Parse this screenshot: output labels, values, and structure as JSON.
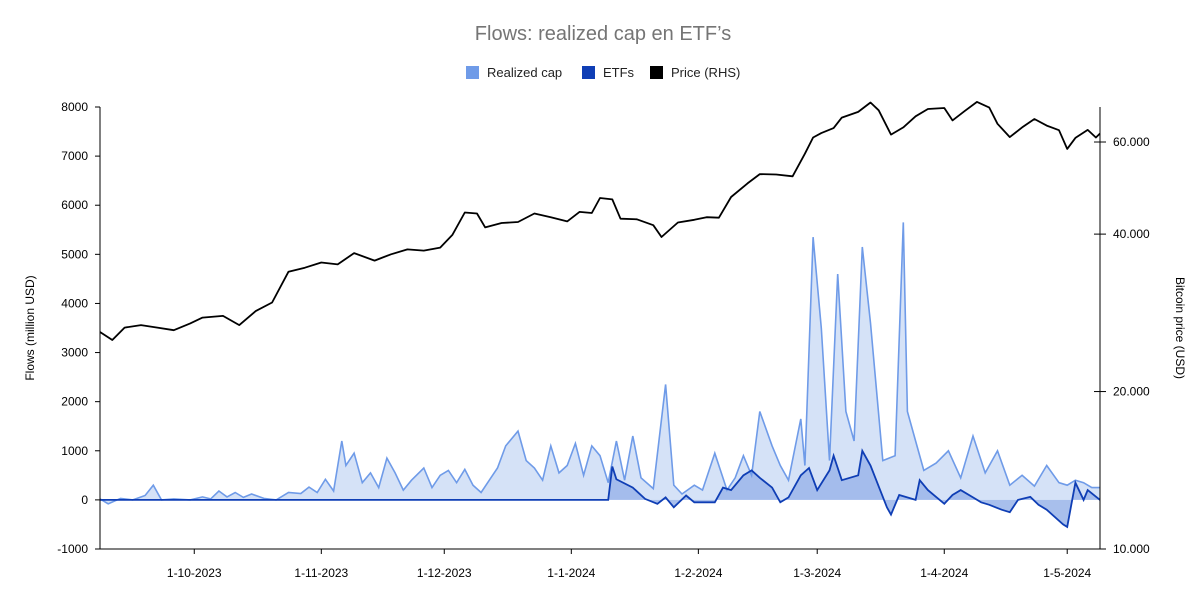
{
  "chart_data": {
    "type": "line",
    "title": "Flows: realized cap en ETF’s",
    "ylabel": "Flows (million USD)",
    "ylabel_right": "Bitcoin price (USD)",
    "x_range": [
      "2023-09-08",
      "2024-05-09"
    ],
    "ylim_left": [
      -1000,
      8000
    ],
    "ylim_right": [
      10000,
      70000
    ],
    "right_scale": "log",
    "legend_position": "top-center",
    "grid": false,
    "x_ticks": [
      {
        "date": "2023-10-01",
        "label": "1-10-2023"
      },
      {
        "date": "2023-11-01",
        "label": "1-11-2023"
      },
      {
        "date": "2023-12-01",
        "label": "1-12-2023"
      },
      {
        "date": "2024-01-01",
        "label": "1-1-2024"
      },
      {
        "date": "2024-02-01",
        "label": "1-2-2024"
      },
      {
        "date": "2024-03-01",
        "label": "1-3-2024"
      },
      {
        "date": "2024-04-01",
        "label": "1-4-2024"
      },
      {
        "date": "2024-05-01",
        "label": "1-5-2024"
      }
    ],
    "y_ticks_left": [
      {
        "value": -1000,
        "label": "-1000"
      },
      {
        "value": 0,
        "label": "0"
      },
      {
        "value": 1000,
        "label": "1000"
      },
      {
        "value": 2000,
        "label": "2000"
      },
      {
        "value": 3000,
        "label": "3000"
      },
      {
        "value": 4000,
        "label": "4000"
      },
      {
        "value": 5000,
        "label": "5000"
      },
      {
        "value": 6000,
        "label": "6000"
      },
      {
        "value": 7000,
        "label": "7000"
      },
      {
        "value": 8000,
        "label": "8000"
      }
    ],
    "y_ticks_right": [
      {
        "value": 10000,
        "label": "10.000"
      },
      {
        "value": 20000,
        "label": "20.000"
      },
      {
        "value": 40000,
        "label": "40.000"
      },
      {
        "value": 60000,
        "label": "60.000"
      }
    ],
    "series": [
      {
        "name": "Realized cap",
        "axis": "left",
        "color": "#6f9be8",
        "fill": "#d3e0f7",
        "points": [
          [
            "2023-09-08",
            20
          ],
          [
            "2023-09-10",
            -80
          ],
          [
            "2023-09-13",
            30
          ],
          [
            "2023-09-16",
            0
          ],
          [
            "2023-09-19",
            90
          ],
          [
            "2023-09-21",
            300
          ],
          [
            "2023-09-23",
            0
          ],
          [
            "2023-09-26",
            20
          ],
          [
            "2023-09-30",
            0
          ],
          [
            "2023-10-03",
            60
          ],
          [
            "2023-10-05",
            20
          ],
          [
            "2023-10-07",
            180
          ],
          [
            "2023-10-09",
            60
          ],
          [
            "2023-10-11",
            150
          ],
          [
            "2023-10-13",
            50
          ],
          [
            "2023-10-15",
            120
          ],
          [
            "2023-10-18",
            30
          ],
          [
            "2023-10-21",
            0
          ],
          [
            "2023-10-24",
            150
          ],
          [
            "2023-10-27",
            130
          ],
          [
            "2023-10-29",
            260
          ],
          [
            "2023-10-31",
            150
          ],
          [
            "2023-11-02",
            420
          ],
          [
            "2023-11-04",
            180
          ],
          [
            "2023-11-06",
            1200
          ],
          [
            "2023-11-07",
            700
          ],
          [
            "2023-11-09",
            950
          ],
          [
            "2023-11-11",
            350
          ],
          [
            "2023-11-13",
            550
          ],
          [
            "2023-11-15",
            250
          ],
          [
            "2023-11-17",
            850
          ],
          [
            "2023-11-19",
            550
          ],
          [
            "2023-11-21",
            200
          ],
          [
            "2023-11-23",
            400
          ],
          [
            "2023-11-26",
            650
          ],
          [
            "2023-11-28",
            250
          ],
          [
            "2023-11-30",
            500
          ],
          [
            "2023-12-02",
            600
          ],
          [
            "2023-12-04",
            350
          ],
          [
            "2023-12-06",
            620
          ],
          [
            "2023-12-08",
            300
          ],
          [
            "2023-12-10",
            150
          ],
          [
            "2023-12-12",
            400
          ],
          [
            "2023-12-14",
            650
          ],
          [
            "2023-12-16",
            1100
          ],
          [
            "2023-12-19",
            1400
          ],
          [
            "2023-12-21",
            800
          ],
          [
            "2023-12-23",
            650
          ],
          [
            "2023-12-25",
            400
          ],
          [
            "2023-12-27",
            1100
          ],
          [
            "2023-12-29",
            550
          ],
          [
            "2023-12-31",
            700
          ],
          [
            "2024-01-02",
            1150
          ],
          [
            "2024-01-04",
            500
          ],
          [
            "2024-01-06",
            1100
          ],
          [
            "2024-01-08",
            900
          ],
          [
            "2024-01-10",
            350
          ],
          [
            "2024-01-12",
            1200
          ],
          [
            "2024-01-14",
            400
          ],
          [
            "2024-01-16",
            1300
          ],
          [
            "2024-01-18",
            450
          ],
          [
            "2024-01-21",
            230
          ],
          [
            "2024-01-24",
            2350
          ],
          [
            "2024-01-26",
            300
          ],
          [
            "2024-01-28",
            120
          ],
          [
            "2024-01-31",
            300
          ],
          [
            "2024-02-02",
            200
          ],
          [
            "2024-02-05",
            950
          ],
          [
            "2024-02-08",
            200
          ],
          [
            "2024-02-10",
            450
          ],
          [
            "2024-02-12",
            900
          ],
          [
            "2024-02-14",
            500
          ],
          [
            "2024-02-16",
            1800
          ],
          [
            "2024-02-19",
            1100
          ],
          [
            "2024-02-21",
            700
          ],
          [
            "2024-02-23",
            400
          ],
          [
            "2024-02-26",
            1650
          ],
          [
            "2024-02-27",
            700
          ],
          [
            "2024-02-29",
            5350
          ],
          [
            "2024-03-02",
            3500
          ],
          [
            "2024-03-04",
            800
          ],
          [
            "2024-03-06",
            4600
          ],
          [
            "2024-03-08",
            1800
          ],
          [
            "2024-03-10",
            1200
          ],
          [
            "2024-03-12",
            5150
          ],
          [
            "2024-03-14",
            3600
          ],
          [
            "2024-03-17",
            800
          ],
          [
            "2024-03-20",
            900
          ],
          [
            "2024-03-22",
            5650
          ],
          [
            "2024-03-23",
            1800
          ],
          [
            "2024-03-25",
            1200
          ],
          [
            "2024-03-27",
            600
          ],
          [
            "2024-03-30",
            750
          ],
          [
            "2024-04-02",
            1000
          ],
          [
            "2024-04-05",
            450
          ],
          [
            "2024-04-08",
            1300
          ],
          [
            "2024-04-11",
            550
          ],
          [
            "2024-04-14",
            1000
          ],
          [
            "2024-04-17",
            300
          ],
          [
            "2024-04-20",
            500
          ],
          [
            "2024-04-23",
            280
          ],
          [
            "2024-04-26",
            700
          ],
          [
            "2024-04-29",
            350
          ],
          [
            "2024-05-01",
            300
          ],
          [
            "2024-05-03",
            400
          ],
          [
            "2024-05-05",
            350
          ],
          [
            "2024-05-07",
            250
          ],
          [
            "2024-05-09",
            250
          ]
        ]
      },
      {
        "name": "ETFs",
        "axis": "left",
        "color": "#0f3eb5",
        "fill": "#9fb8ea",
        "points": [
          [
            "2023-09-08",
            0
          ],
          [
            "2024-01-10",
            0
          ],
          [
            "2024-01-11",
            680
          ],
          [
            "2024-01-12",
            420
          ],
          [
            "2024-01-16",
            250
          ],
          [
            "2024-01-19",
            20
          ],
          [
            "2024-01-22",
            -80
          ],
          [
            "2024-01-24",
            50
          ],
          [
            "2024-01-26",
            -150
          ],
          [
            "2024-01-29",
            90
          ],
          [
            "2024-01-31",
            -50
          ],
          [
            "2024-02-05",
            -50
          ],
          [
            "2024-02-07",
            250
          ],
          [
            "2024-02-09",
            200
          ],
          [
            "2024-02-12",
            500
          ],
          [
            "2024-02-14",
            600
          ],
          [
            "2024-02-16",
            450
          ],
          [
            "2024-02-19",
            250
          ],
          [
            "2024-02-21",
            -50
          ],
          [
            "2024-02-23",
            50
          ],
          [
            "2024-02-26",
            500
          ],
          [
            "2024-02-28",
            650
          ],
          [
            "2024-03-01",
            200
          ],
          [
            "2024-03-04",
            600
          ],
          [
            "2024-03-05",
            900
          ],
          [
            "2024-03-07",
            400
          ],
          [
            "2024-03-11",
            500
          ],
          [
            "2024-03-12",
            1000
          ],
          [
            "2024-03-14",
            700
          ],
          [
            "2024-03-18",
            -150
          ],
          [
            "2024-03-19",
            -300
          ],
          [
            "2024-03-21",
            100
          ],
          [
            "2024-03-25",
            0
          ],
          [
            "2024-03-26",
            400
          ],
          [
            "2024-03-28",
            200
          ],
          [
            "2024-04-01",
            -80
          ],
          [
            "2024-04-03",
            100
          ],
          [
            "2024-04-05",
            200
          ],
          [
            "2024-04-08",
            50
          ],
          [
            "2024-04-10",
            -50
          ],
          [
            "2024-04-12",
            -100
          ],
          [
            "2024-04-15",
            -200
          ],
          [
            "2024-04-17",
            -250
          ],
          [
            "2024-04-19",
            0
          ],
          [
            "2024-04-22",
            60
          ],
          [
            "2024-04-24",
            -100
          ],
          [
            "2024-04-26",
            -200
          ],
          [
            "2024-04-30",
            -500
          ],
          [
            "2024-05-01",
            -550
          ],
          [
            "2024-05-03",
            350
          ],
          [
            "2024-05-05",
            0
          ],
          [
            "2024-05-06",
            200
          ],
          [
            "2024-05-09",
            0
          ]
        ]
      },
      {
        "name": "Price (RHS)",
        "axis": "right",
        "color": "#000000",
        "points": [
          [
            "2023-09-08",
            26000
          ],
          [
            "2023-09-11",
            25100
          ],
          [
            "2023-09-14",
            26500
          ],
          [
            "2023-09-18",
            26800
          ],
          [
            "2023-09-22",
            26500
          ],
          [
            "2023-09-26",
            26200
          ],
          [
            "2023-09-30",
            27000
          ],
          [
            "2023-10-03",
            27700
          ],
          [
            "2023-10-08",
            27900
          ],
          [
            "2023-10-12",
            26800
          ],
          [
            "2023-10-16",
            28500
          ],
          [
            "2023-10-20",
            29600
          ],
          [
            "2023-10-24",
            33900
          ],
          [
            "2023-10-28",
            34500
          ],
          [
            "2023-11-01",
            35300
          ],
          [
            "2023-11-05",
            35000
          ],
          [
            "2023-11-09",
            36800
          ],
          [
            "2023-11-14",
            35600
          ],
          [
            "2023-11-18",
            36600
          ],
          [
            "2023-11-22",
            37400
          ],
          [
            "2023-11-26",
            37200
          ],
          [
            "2023-11-30",
            37700
          ],
          [
            "2023-12-03",
            39900
          ],
          [
            "2023-12-06",
            44000
          ],
          [
            "2023-12-09",
            43800
          ],
          [
            "2023-12-11",
            41200
          ],
          [
            "2023-12-15",
            42000
          ],
          [
            "2023-12-19",
            42200
          ],
          [
            "2023-12-23",
            43800
          ],
          [
            "2023-12-27",
            43100
          ],
          [
            "2023-12-31",
            42300
          ],
          [
            "2024-01-03",
            44100
          ],
          [
            "2024-01-06",
            43900
          ],
          [
            "2024-01-08",
            46900
          ],
          [
            "2024-01-11",
            46600
          ],
          [
            "2024-01-13",
            42800
          ],
          [
            "2024-01-17",
            42700
          ],
          [
            "2024-01-21",
            41600
          ],
          [
            "2024-01-23",
            39500
          ],
          [
            "2024-01-27",
            42100
          ],
          [
            "2024-01-31",
            42600
          ],
          [
            "2024-02-03",
            43100
          ],
          [
            "2024-02-06",
            43000
          ],
          [
            "2024-02-09",
            47100
          ],
          [
            "2024-02-13",
            50000
          ],
          [
            "2024-02-16",
            52100
          ],
          [
            "2024-02-20",
            52000
          ],
          [
            "2024-02-24",
            51600
          ],
          [
            "2024-02-27",
            57000
          ],
          [
            "2024-02-29",
            61200
          ],
          [
            "2024-03-02",
            62400
          ],
          [
            "2024-03-05",
            63800
          ],
          [
            "2024-03-07",
            66800
          ],
          [
            "2024-03-11",
            68500
          ],
          [
            "2024-03-14",
            71400
          ],
          [
            "2024-03-16",
            69000
          ],
          [
            "2024-03-19",
            62000
          ],
          [
            "2024-03-22",
            64000
          ],
          [
            "2024-03-25",
            67200
          ],
          [
            "2024-03-28",
            69400
          ],
          [
            "2024-04-01",
            69700
          ],
          [
            "2024-04-03",
            66000
          ],
          [
            "2024-04-06",
            68800
          ],
          [
            "2024-04-09",
            71600
          ],
          [
            "2024-04-12",
            69800
          ],
          [
            "2024-04-14",
            65000
          ],
          [
            "2024-04-17",
            61300
          ],
          [
            "2024-04-20",
            64000
          ],
          [
            "2024-04-23",
            66400
          ],
          [
            "2024-04-26",
            64500
          ],
          [
            "2024-04-29",
            63200
          ],
          [
            "2024-05-01",
            58200
          ],
          [
            "2024-05-03",
            61100
          ],
          [
            "2024-05-06",
            63300
          ],
          [
            "2024-05-08",
            61200
          ],
          [
            "2024-05-09",
            62300
          ]
        ]
      }
    ]
  }
}
